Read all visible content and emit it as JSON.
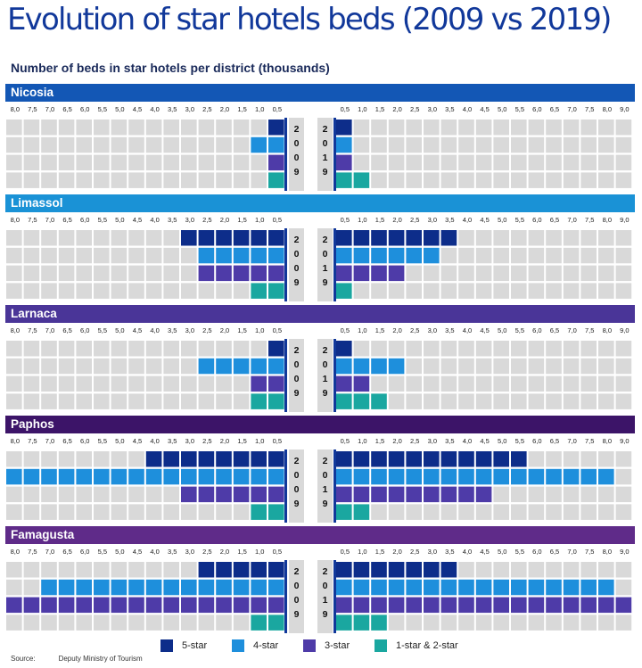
{
  "title": "Evolution of star hotels beds (2009 vs 2019)",
  "chart_data": {
    "type": "bar",
    "title": "Number of beds in star hotels per district (thousands)",
    "unit_per_block": 0.5,
    "year_left": "2009",
    "year_right": "2019",
    "left_ticks": [
      "8,0",
      "7,5",
      "7,0",
      "6,5",
      "6,0",
      "5,5",
      "5,0",
      "4,5",
      "4,0",
      "3,5",
      "3,0",
      "2,5",
      "2,0",
      "1,5",
      "1,0",
      "0,5"
    ],
    "right_ticks": [
      "0,5",
      "1,0",
      "1,5",
      "2,0",
      "2,5",
      "3,0",
      "3,5",
      "4,0",
      "4,5",
      "5,0",
      "5,5",
      "6,0",
      "6,5",
      "7,0",
      "7,5",
      "8,0",
      "9,0"
    ],
    "categories": [
      "5-star",
      "4-star",
      "3-star",
      "1-star & 2-star"
    ],
    "colors": {
      "5-star": "#0d2d8a",
      "4-star": "#1e8fdc",
      "3-star": "#4e3ba8",
      "1-star & 2-star": "#1aa7a0",
      "empty": "#d9d9d9"
    },
    "districts": [
      {
        "name": "Nicosia",
        "color": "#1357b5",
        "values_2009": [
          0.5,
          1.0,
          0.5,
          0.5
        ],
        "values_2019": [
          0.5,
          0.5,
          0.5,
          1.0
        ]
      },
      {
        "name": "Limassol",
        "color": "#1a92d6",
        "values_2009": [
          3.0,
          2.5,
          2.5,
          1.0
        ],
        "values_2019": [
          3.5,
          3.0,
          2.0,
          0.5
        ]
      },
      {
        "name": "Larnaca",
        "color": "#4a3598",
        "values_2009": [
          0.5,
          2.5,
          1.0,
          1.0
        ],
        "values_2019": [
          0.5,
          2.0,
          1.0,
          1.5
        ]
      },
      {
        "name": "Paphos",
        "color": "#3c1468",
        "values_2009": [
          4.0,
          8.0,
          3.0,
          1.0
        ],
        "values_2019": [
          5.5,
          8.0,
          4.5,
          1.0
        ]
      },
      {
        "name": "Famagusta",
        "color": "#5f2b89",
        "values_2009": [
          2.5,
          7.0,
          8.0,
          1.0
        ],
        "values_2019": [
          3.5,
          8.0,
          9.0,
          1.5
        ]
      }
    ],
    "legend": [
      "5-star",
      "4-star",
      "3-star",
      "1-star & 2-star"
    ]
  },
  "source": {
    "label": "Source:",
    "value": "Deputy Ministry of Tourism"
  }
}
